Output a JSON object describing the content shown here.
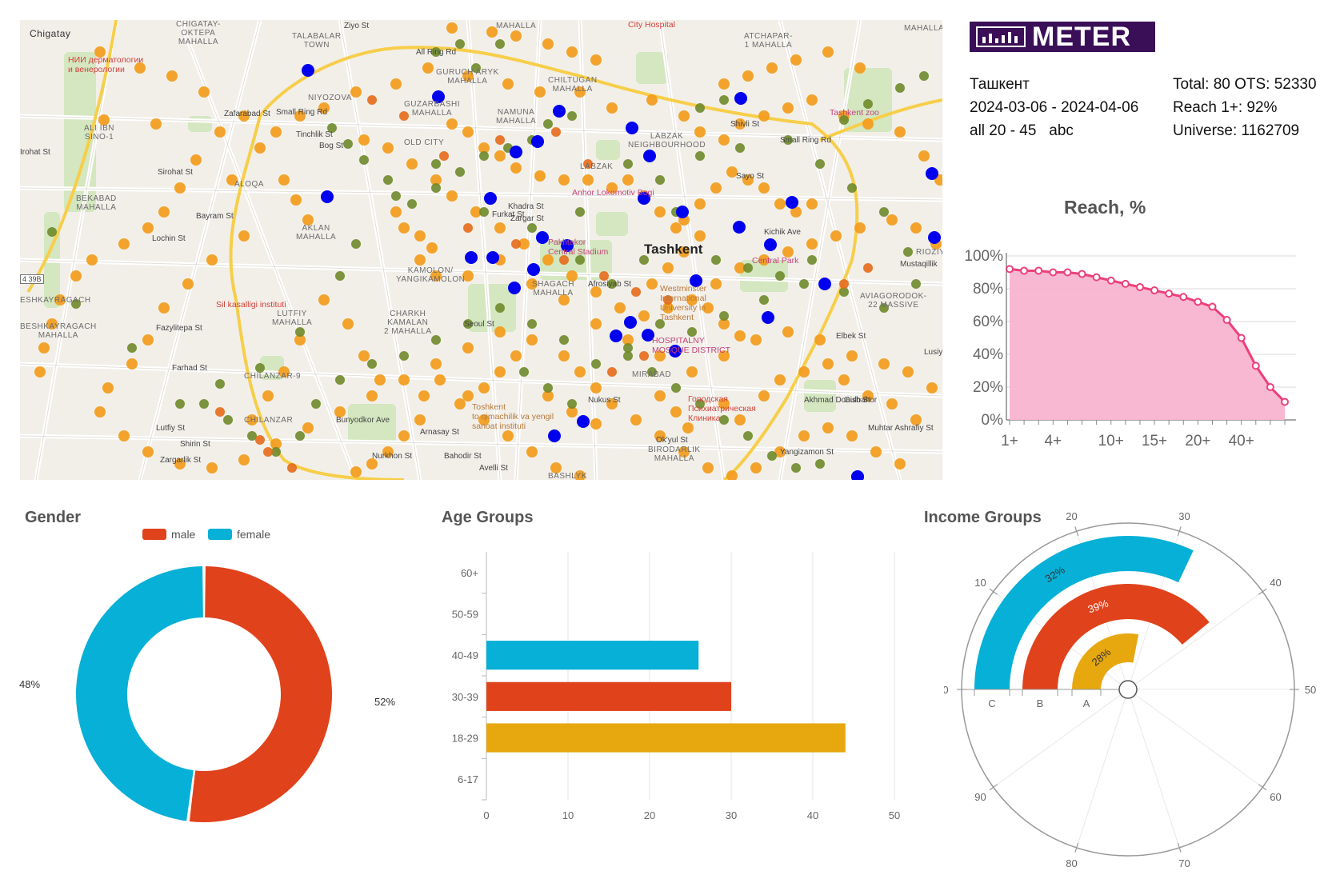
{
  "map": {
    "city_label": "Tashkent",
    "areas": [
      "Chigatay",
      "CHIGATAY-\nOKTEPA\nMAHALLA",
      "TALABALAR\nTOWN",
      "MAHALLA",
      "ATCHAPAR-\n1 MAHALLA",
      "GURUCH ARYK\nMAHALLA",
      "CHILTUGAN\nMAHALLA",
      "NIYOZOVA",
      "GUZARBASHI\nMAHALLA",
      "NAMUNA\nMAHALLA",
      "LABZAK\nNEIGHBOURHOOD",
      "ALI IBN\nSINO-1",
      "OLD CITY",
      "LABZAK",
      "ALOQA",
      "BEKABAD\nMAHALLA",
      "AKLAN\nMAHALLA",
      "KAMOLON/\nYANGIKAMOLON",
      "ESHKAYRAGACH",
      "BESHKAYRAGACH\nMAHALLA",
      "LUTFIY\nMAHALLA",
      "CHARKH\nKAMALAN\n2 MAHALLA",
      "SHAGACH\nMAHALLA",
      "AVIAGORODOK-\n22 MASSIVE",
      "RIOZIY",
      "CHILANZAR-9",
      "CHILANZAR",
      "MIRABAD",
      "BIRODARLIK\nMAHALLA",
      "BASHLYK",
      "MAHALLA"
    ],
    "streets": [
      "Ziyo St",
      "All Ring Rd",
      "Zafarabad St",
      "Small Ring Rd",
      "Bog St",
      "Tinchlik St",
      "Shivli St",
      "Small Ring Rd",
      "Sayo St",
      "Irohat St",
      "Sirohat St",
      "Bayram St",
      "Lochin St",
      "Khadra St",
      "Zargar St",
      "Furkat St",
      "Afrosiyab St",
      "Seoul St",
      "Fazylitepa St",
      "Farhad St",
      "Lutfiy St",
      "Shirin St",
      "Zargarlik St",
      "Bunyodkor Ave",
      "Arnasay St",
      "Nurkhon St",
      "Bahodir St",
      "Avelli St",
      "Nukus St",
      "Ok'yul St",
      "Yangizamon St",
      "Elbek St",
      "Muhtar Ashrafiy St",
      "Lusiy St",
      "Kichik Ave",
      "Akhmad Donish St",
      "Gulbahor",
      "Mustaqillik"
    ],
    "pois": [
      "НИИ дерматологии\nи венерологии",
      "Tashkent zoo",
      "City Hospital",
      "Anhor Lokomotiv Bogi",
      "Pakhtakor\nCentral Stadium",
      "Central Park",
      "Westminster\nInternational\nUniversity in\nTashkent",
      "Sil kasalligi instituti",
      "HOSPITALNY\nMOSQUE DISTRICT",
      "Toshkent\nto qimachilik va yengil\nsanoat instituti",
      "Городская\nПсихиатрическая\nКлиника"
    ],
    "road_badge": "4 39B"
  },
  "logo": {
    "text": "METER"
  },
  "info": {
    "city": "Ташкент",
    "period": "2024-03-06 - 2024-04-06",
    "audience": "all 20 - 45   abc",
    "total": "Total: 80 OTS: 52330",
    "reach": "Reach 1+: 92%",
    "universe": "Universe: 1162709"
  },
  "titles": {
    "reach": "Reach, %",
    "gender": "Gender",
    "age": "Age Groups",
    "income": "Income Groups"
  },
  "colors": {
    "map_dot_orange": "#f39c1a",
    "map_dot_blue": "#0000ee",
    "map_dot_olive": "#6e8a2a",
    "map_dot_darkorange": "#e66a1a",
    "reach_line": "#ec407a",
    "reach_fill": "#f8b4cf",
    "male": "#e0421c",
    "female": "#06b0d6",
    "age_18_29": "#e6a70f",
    "age_30_39": "#e0421c",
    "age_40_49": "#06b0d6"
  },
  "chart_data": [
    {
      "type": "area",
      "title": "Reach, %",
      "categories": [
        "1+",
        "",
        "",
        "4+",
        "",
        "",
        "",
        "10+",
        "",
        "",
        "15+",
        "",
        "",
        "20+",
        "",
        "",
        "40+",
        "",
        "",
        ""
      ],
      "x_ticks": [
        "1+",
        "4+",
        "10+",
        "15+",
        "20+",
        "40+"
      ],
      "values": [
        92,
        91,
        91,
        90,
        90,
        89,
        87,
        85,
        83,
        81,
        79,
        77,
        75,
        72,
        69,
        61,
        50,
        33,
        20,
        11
      ],
      "y_ticks": [
        "0%",
        "20%",
        "40%",
        "60%",
        "80%",
        "100%"
      ],
      "ylim": [
        0,
        100
      ]
    },
    {
      "type": "pie",
      "title": "Gender",
      "legend": [
        "male",
        "female"
      ],
      "values": [
        52,
        48
      ],
      "labels": [
        "52%",
        "48%"
      ]
    },
    {
      "type": "bar",
      "title": "Age Groups",
      "categories": [
        "60+",
        "50-59",
        "40-49",
        "30-39",
        "18-29",
        "6-17"
      ],
      "values": [
        0,
        0,
        26,
        30,
        44,
        0
      ],
      "x_ticks": [
        "0",
        "10",
        "20",
        "30",
        "40",
        "50"
      ],
      "xlim": [
        0,
        50
      ]
    },
    {
      "type": "bar",
      "title": "Income Groups",
      "categories": [
        "C",
        "B",
        "A"
      ],
      "values": [
        32,
        39,
        28
      ],
      "labels": [
        "32%",
        "39%",
        "28%"
      ],
      "angle_ticks": [
        "0",
        "10",
        "20",
        "30",
        "40",
        "50",
        "60",
        "70",
        "80",
        "90"
      ],
      "angle_max": 100
    }
  ]
}
